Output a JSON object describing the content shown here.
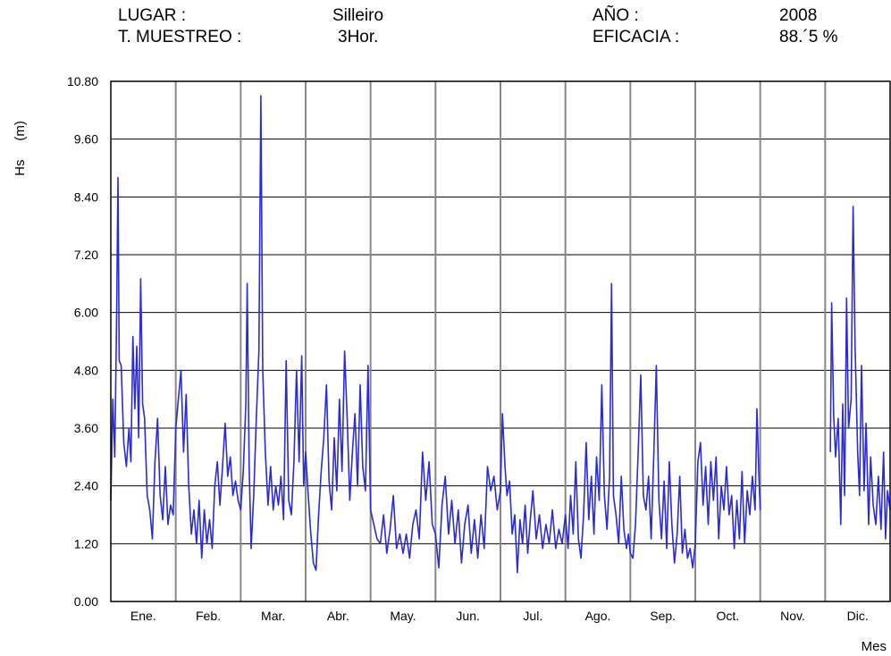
{
  "header": {
    "lugar_label": "LUGAR :",
    "lugar_value": "Silleiro",
    "ano_label": "AÑO :",
    "ano_value": "2008",
    "muestreo_label": "T. MUESTREO :",
    "muestreo_value": "3Hor.",
    "eficacia_label": "EFICACIA :",
    "eficacia_value": "88.´5 %"
  },
  "colors": {
    "series": "#2b2bd6",
    "grid": "#000000",
    "month_line": "#888888"
  },
  "chart_data": {
    "type": "line",
    "title": "",
    "xlabel": "Mes",
    "ylabel": "Hs     (m)",
    "ylim": [
      0,
      10.8
    ],
    "yticks": [
      0.0,
      1.2,
      2.4,
      3.6,
      4.8,
      6.0,
      7.2,
      8.4,
      9.6,
      10.8
    ],
    "ytick_labels": [
      "0.00",
      "1.20",
      "2.40",
      "3.60",
      "4.80",
      "6.00",
      "7.20",
      "8.40",
      "9.60",
      "10.80"
    ],
    "xlim": [
      0,
      12
    ],
    "categories": [
      "Ene.",
      "Feb.",
      "Mar.",
      "Abr.",
      "May.",
      "Jun.",
      "Jul.",
      "Ago.",
      "Sep.",
      "Oct.",
      "Nov.",
      "Dic."
    ],
    "grid": true,
    "series": [
      {
        "name": "",
        "segments": [
          [
            [
              0.0,
              2.1
            ],
            [
              0.03,
              4.2
            ],
            [
              0.06,
              3.0
            ],
            [
              0.09,
              5.9
            ],
            [
              0.11,
              8.8
            ],
            [
              0.13,
              5.0
            ],
            [
              0.16,
              4.9
            ],
            [
              0.2,
              3.3
            ],
            [
              0.24,
              2.8
            ],
            [
              0.28,
              3.6
            ],
            [
              0.31,
              2.9
            ],
            [
              0.34,
              5.5
            ],
            [
              0.37,
              4.0
            ],
            [
              0.4,
              5.3
            ],
            [
              0.43,
              3.4
            ],
            [
              0.46,
              6.7
            ],
            [
              0.49,
              4.1
            ],
            [
              0.52,
              3.8
            ],
            [
              0.56,
              2.2
            ],
            [
              0.6,
              1.9
            ],
            [
              0.64,
              1.3
            ],
            [
              0.68,
              2.9
            ],
            [
              0.72,
              3.8
            ],
            [
              0.76,
              2.2
            ],
            [
              0.8,
              1.7
            ],
            [
              0.84,
              2.8
            ],
            [
              0.88,
              1.6
            ],
            [
              0.92,
              2.0
            ],
            [
              0.96,
              1.8
            ],
            [
              1.0,
              3.6
            ],
            [
              1.04,
              4.2
            ],
            [
              1.08,
              4.8
            ],
            [
              1.12,
              3.1
            ],
            [
              1.16,
              4.3
            ],
            [
              1.2,
              2.4
            ],
            [
              1.24,
              1.4
            ],
            [
              1.28,
              1.9
            ],
            [
              1.32,
              1.2
            ],
            [
              1.36,
              2.1
            ],
            [
              1.4,
              0.9
            ],
            [
              1.44,
              1.9
            ],
            [
              1.48,
              1.2
            ],
            [
              1.52,
              1.7
            ],
            [
              1.56,
              1.1
            ],
            [
              1.6,
              2.4
            ],
            [
              1.64,
              2.9
            ],
            [
              1.68,
              2.0
            ],
            [
              1.72,
              2.8
            ],
            [
              1.76,
              3.7
            ],
            [
              1.8,
              2.6
            ],
            [
              1.84,
              3.0
            ],
            [
              1.88,
              2.2
            ],
            [
              1.92,
              2.5
            ],
            [
              1.96,
              2.1
            ],
            [
              2.0,
              1.9
            ],
            [
              2.04,
              2.7
            ],
            [
              2.08,
              4.1
            ],
            [
              2.1,
              6.6
            ],
            [
              2.13,
              2.8
            ],
            [
              2.16,
              1.1
            ],
            [
              2.2,
              2.2
            ],
            [
              2.24,
              3.8
            ],
            [
              2.28,
              5.2
            ],
            [
              2.31,
              10.5
            ],
            [
              2.34,
              4.8
            ],
            [
              2.38,
              3.1
            ],
            [
              2.42,
              2.0
            ],
            [
              2.46,
              2.8
            ],
            [
              2.5,
              1.9
            ],
            [
              2.54,
              2.4
            ],
            [
              2.58,
              2.0
            ],
            [
              2.62,
              2.6
            ],
            [
              2.66,
              1.7
            ],
            [
              2.7,
              5.0
            ],
            [
              2.74,
              2.1
            ],
            [
              2.78,
              1.8
            ],
            [
              2.82,
              2.9
            ],
            [
              2.86,
              4.8
            ],
            [
              2.9,
              2.9
            ],
            [
              2.94,
              5.1
            ],
            [
              2.97,
              2.4
            ],
            [
              3.0,
              3.1
            ],
            [
              3.04,
              2.2
            ],
            [
              3.08,
              1.4
            ],
            [
              3.12,
              0.8
            ],
            [
              3.16,
              0.65
            ],
            [
              3.2,
              1.8
            ],
            [
              3.24,
              2.7
            ],
            [
              3.28,
              3.4
            ],
            [
              3.32,
              4.5
            ],
            [
              3.36,
              2.5
            ],
            [
              3.4,
              1.9
            ],
            [
              3.44,
              3.4
            ],
            [
              3.48,
              2.3
            ],
            [
              3.52,
              4.2
            ],
            [
              3.56,
              2.7
            ],
            [
              3.6,
              5.2
            ],
            [
              3.64,
              3.8
            ],
            [
              3.68,
              2.1
            ],
            [
              3.72,
              3.1
            ],
            [
              3.76,
              3.9
            ],
            [
              3.8,
              2.4
            ],
            [
              3.84,
              4.5
            ],
            [
              3.88,
              2.8
            ],
            [
              3.92,
              2.3
            ],
            [
              3.96,
              4.9
            ],
            [
              4.0,
              1.9
            ],
            [
              4.05,
              1.6
            ],
            [
              4.1,
              1.3
            ],
            [
              4.15,
              1.2
            ],
            [
              4.2,
              1.8
            ],
            [
              4.25,
              1.0
            ],
            [
              4.3,
              1.5
            ],
            [
              4.35,
              2.2
            ],
            [
              4.4,
              1.1
            ],
            [
              4.45,
              1.4
            ],
            [
              4.5,
              1.0
            ],
            [
              4.55,
              1.4
            ],
            [
              4.6,
              0.9
            ],
            [
              4.65,
              1.6
            ],
            [
              4.7,
              1.9
            ],
            [
              4.75,
              1.3
            ],
            [
              4.8,
              3.1
            ],
            [
              4.85,
              2.1
            ],
            [
              4.9,
              2.9
            ],
            [
              4.95,
              1.6
            ],
            [
              5.0,
              1.4
            ],
            [
              5.05,
              0.7
            ],
            [
              5.1,
              2.0
            ],
            [
              5.15,
              2.6
            ],
            [
              5.2,
              1.4
            ],
            [
              5.25,
              2.1
            ],
            [
              5.3,
              1.2
            ],
            [
              5.35,
              1.9
            ],
            [
              5.4,
              0.8
            ],
            [
              5.45,
              1.6
            ],
            [
              5.5,
              2.0
            ],
            [
              5.55,
              1.0
            ],
            [
              5.6,
              1.7
            ],
            [
              5.65,
              0.9
            ],
            [
              5.7,
              1.8
            ],
            [
              5.75,
              1.1
            ],
            [
              5.8,
              2.8
            ],
            [
              5.85,
              2.3
            ],
            [
              5.9,
              2.6
            ],
            [
              5.95,
              1.9
            ],
            [
              6.0,
              2.3
            ],
            [
              6.03,
              3.9
            ],
            [
              6.07,
              2.8
            ],
            [
              6.1,
              2.2
            ],
            [
              6.14,
              2.5
            ],
            [
              6.18,
              1.4
            ],
            [
              6.22,
              1.8
            ],
            [
              6.26,
              0.6
            ],
            [
              6.3,
              1.7
            ],
            [
              6.34,
              1.2
            ],
            [
              6.38,
              2.0
            ],
            [
              6.42,
              1.0
            ],
            [
              6.46,
              1.7
            ],
            [
              6.5,
              2.3
            ],
            [
              6.55,
              1.3
            ],
            [
              6.6,
              1.8
            ],
            [
              6.65,
              1.1
            ],
            [
              6.7,
              1.6
            ],
            [
              6.75,
              1.2
            ],
            [
              6.8,
              1.9
            ],
            [
              6.85,
              1.1
            ],
            [
              6.9,
              1.5
            ],
            [
              6.95,
              1.2
            ],
            [
              7.0,
              1.8
            ],
            [
              7.04,
              1.1
            ],
            [
              7.08,
              2.2
            ],
            [
              7.12,
              1.4
            ],
            [
              7.16,
              2.9
            ],
            [
              7.2,
              1.3
            ],
            [
              7.24,
              0.9
            ],
            [
              7.28,
              1.8
            ],
            [
              7.32,
              3.3
            ],
            [
              7.36,
              1.7
            ],
            [
              7.4,
              2.6
            ],
            [
              7.44,
              1.4
            ],
            [
              7.48,
              3.0
            ],
            [
              7.52,
              2.1
            ],
            [
              7.56,
              4.5
            ],
            [
              7.6,
              2.2
            ],
            [
              7.64,
              1.5
            ],
            [
              7.68,
              2.6
            ],
            [
              7.71,
              6.6
            ],
            [
              7.74,
              2.2
            ],
            [
              7.78,
              1.8
            ],
            [
              7.82,
              1.2
            ],
            [
              7.86,
              2.6
            ],
            [
              7.9,
              1.5
            ],
            [
              7.94,
              1.1
            ],
            [
              7.97,
              1.4
            ],
            [
              8.0,
              1.0
            ],
            [
              8.04,
              0.9
            ],
            [
              8.08,
              1.6
            ],
            [
              8.12,
              3.1
            ],
            [
              8.16,
              4.7
            ],
            [
              8.2,
              2.2
            ],
            [
              8.24,
              1.9
            ],
            [
              8.28,
              2.6
            ],
            [
              8.32,
              1.3
            ],
            [
              8.36,
              3.0
            ],
            [
              8.4,
              4.9
            ],
            [
              8.44,
              2.1
            ],
            [
              8.48,
              1.3
            ],
            [
              8.52,
              2.5
            ],
            [
              8.56,
              1.1
            ],
            [
              8.6,
              2.9
            ],
            [
              8.64,
              1.6
            ],
            [
              8.68,
              0.8
            ],
            [
              8.72,
              1.4
            ],
            [
              8.76,
              2.6
            ],
            [
              8.8,
              1.0
            ],
            [
              8.84,
              1.5
            ],
            [
              8.88,
              0.9
            ],
            [
              8.92,
              1.1
            ],
            [
              8.96,
              0.7
            ],
            [
              9.0,
              1.2
            ],
            [
              9.04,
              2.9
            ],
            [
              9.08,
              3.3
            ],
            [
              9.12,
              2.0
            ],
            [
              9.16,
              2.8
            ],
            [
              9.2,
              1.6
            ],
            [
              9.24,
              2.9
            ],
            [
              9.28,
              2.1
            ],
            [
              9.32,
              3.0
            ],
            [
              9.36,
              1.3
            ],
            [
              9.4,
              2.4
            ],
            [
              9.44,
              1.9
            ],
            [
              9.48,
              2.8
            ],
            [
              9.52,
              1.8
            ],
            [
              9.56,
              2.2
            ],
            [
              9.6,
              1.1
            ],
            [
              9.64,
              2.1
            ],
            [
              9.68,
              1.3
            ],
            [
              9.72,
              2.7
            ],
            [
              9.76,
              1.2
            ],
            [
              9.8,
              2.3
            ],
            [
              9.84,
              1.8
            ],
            [
              9.88,
              2.6
            ],
            [
              9.92,
              1.9
            ],
            [
              9.95,
              4.0
            ],
            [
              9.98,
              2.6
            ],
            [
              10.0,
              1.9
            ]
          ],
          [
            [
              11.08,
              3.1
            ],
            [
              11.1,
              6.2
            ],
            [
              11.13,
              3.9
            ],
            [
              11.16,
              3.0
            ],
            [
              11.2,
              3.8
            ],
            [
              11.24,
              1.6
            ],
            [
              11.27,
              4.1
            ],
            [
              11.3,
              2.2
            ],
            [
              11.33,
              6.3
            ],
            [
              11.36,
              3.6
            ],
            [
              11.4,
              4.2
            ],
            [
              11.43,
              8.2
            ],
            [
              11.46,
              5.3
            ],
            [
              11.5,
              3.1
            ],
            [
              11.53,
              2.2
            ],
            [
              11.56,
              4.9
            ],
            [
              11.6,
              2.3
            ],
            [
              11.63,
              3.7
            ],
            [
              11.67,
              1.6
            ],
            [
              11.7,
              3.0
            ],
            [
              11.74,
              2.0
            ],
            [
              11.78,
              1.6
            ],
            [
              11.82,
              2.6
            ],
            [
              11.86,
              1.5
            ],
            [
              11.9,
              3.1
            ],
            [
              11.93,
              1.3
            ],
            [
              11.96,
              2.3
            ],
            [
              12.0,
              1.9
            ]
          ]
        ]
      }
    ]
  }
}
